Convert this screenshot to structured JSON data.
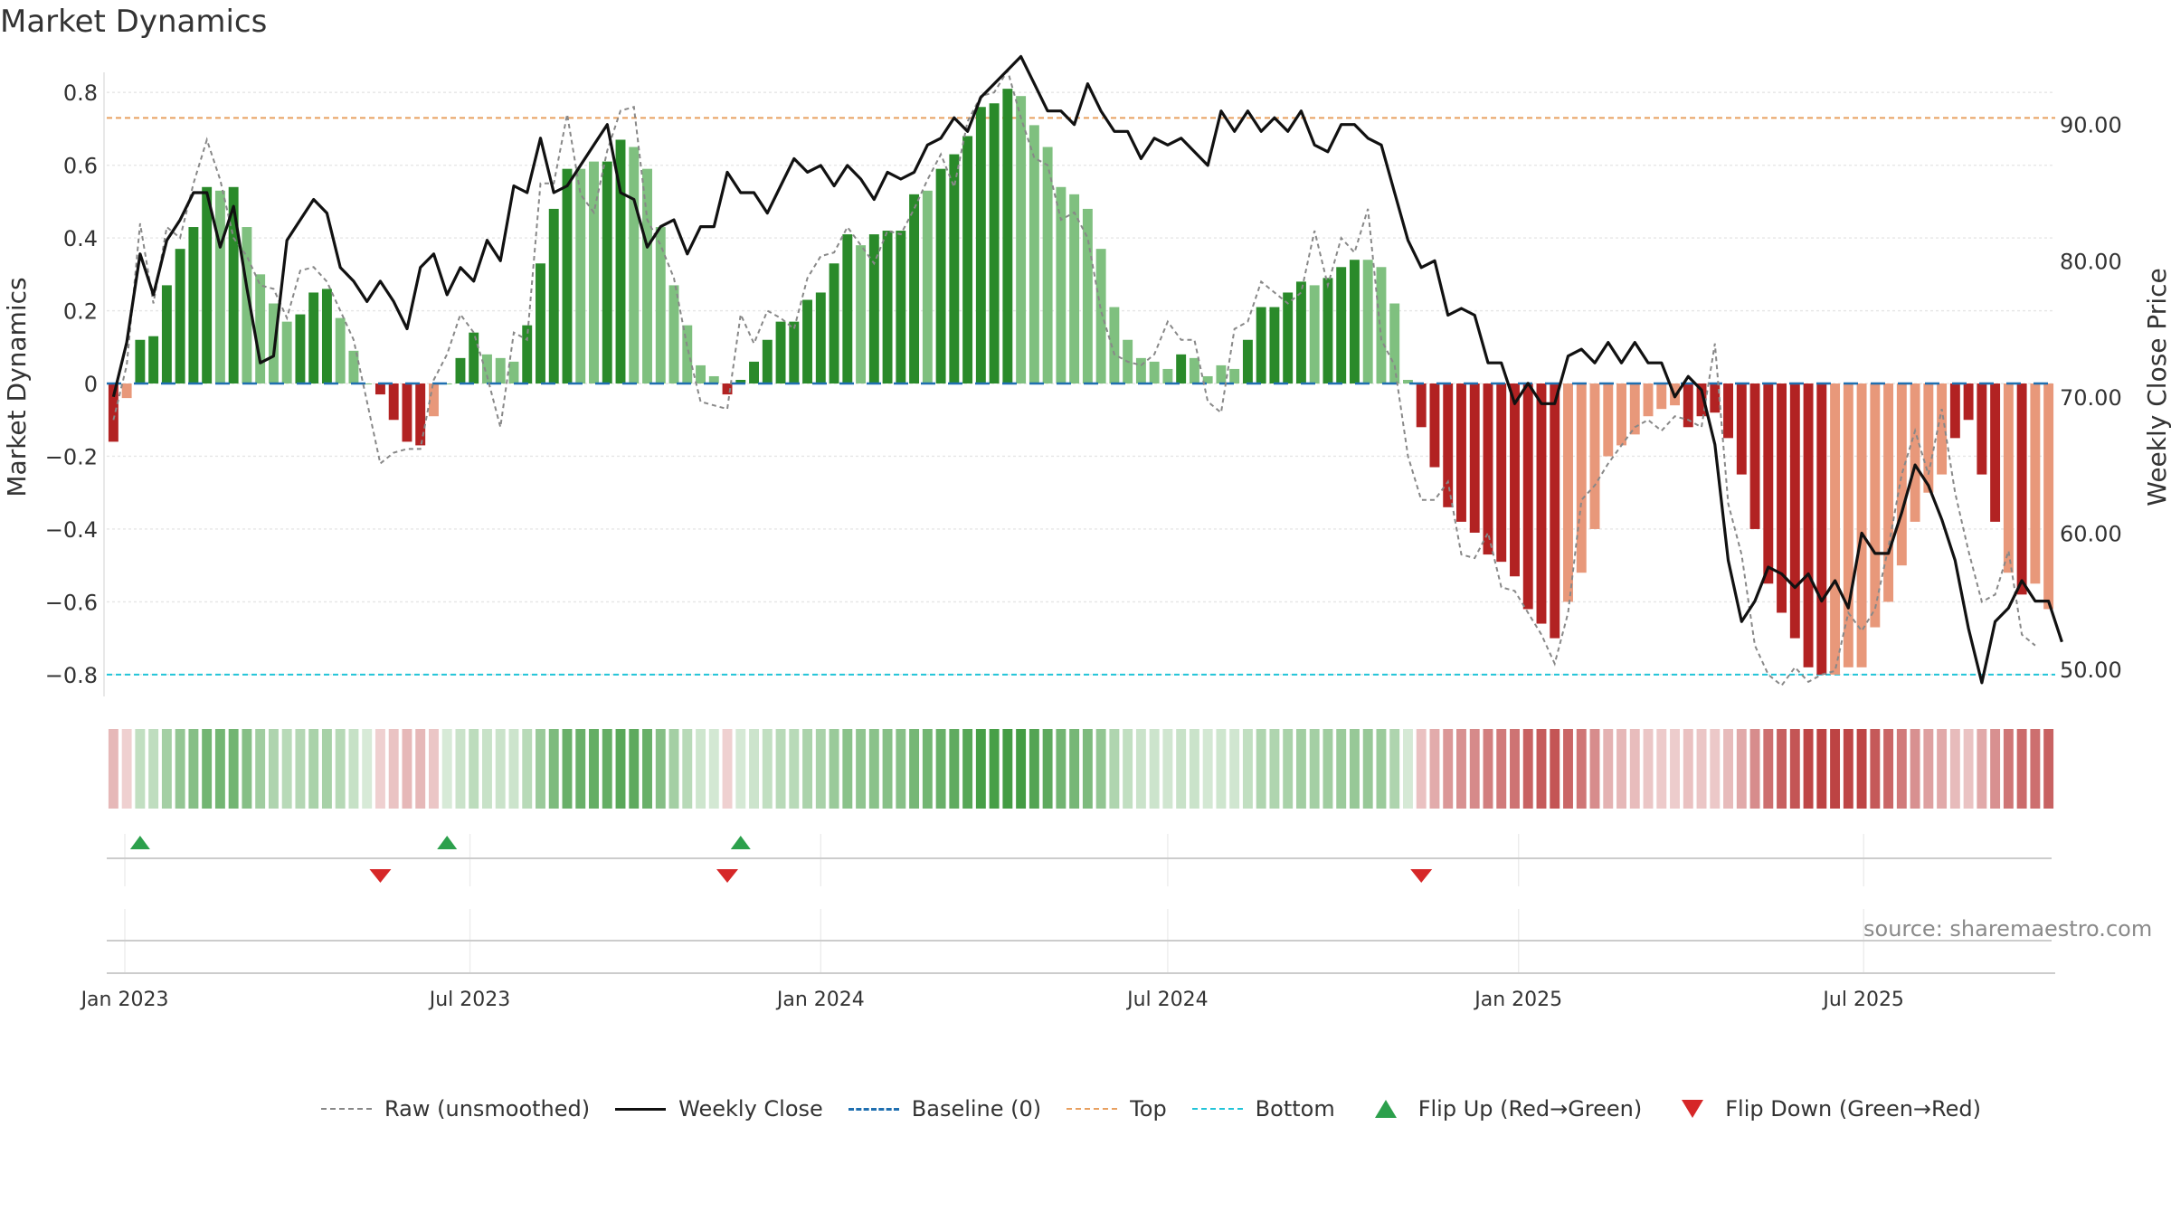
{
  "title": "Market Dynamics",
  "source": "source: sharemaestro.com",
  "legend": {
    "raw": "Raw (unsmoothed)",
    "close": "Weekly Close",
    "baseline": "Baseline (0)",
    "top": "Top",
    "bottom": "Bottom",
    "flip_up": "Flip Up (Red→Green)",
    "flip_down": "Flip Down (Green→Red)"
  },
  "colors": {
    "strong_green": "#2a8a2a",
    "light_green": "#7fc07f",
    "strong_red": "#b22222",
    "light_red": "#e8987a",
    "raw_line": "#888888",
    "close_line": "#111111",
    "baseline": "#1f6fb0",
    "top_line": "#e8a060",
    "bottom_line": "#22c4d8",
    "flip_up": "#2ca04c",
    "flip_down": "#d62728"
  },
  "chart_data": {
    "type": "bar",
    "ylabel": "Market Dynamics",
    "y2label": "Weekly Close Price",
    "ylim": [
      -0.86,
      0.88
    ],
    "y2lim": [
      48,
      94.5
    ],
    "yticks": [
      0.8,
      0.6,
      0.4,
      0.2,
      0,
      -0.2,
      -0.4,
      -0.6,
      -0.8
    ],
    "ytick_labels": [
      "0.8",
      "0.6",
      "0.4",
      "0.2",
      "0",
      "−0.2",
      "−0.4",
      "−0.6",
      "−0.8"
    ],
    "y2ticks": [
      90,
      80,
      70,
      60,
      50
    ],
    "y2tick_labels": [
      "90.00",
      "80.00",
      "70.00",
      "60.00",
      "50.00"
    ],
    "xlabels": [
      "Jan 2023",
      "Jul 2023",
      "Jan 2024",
      "Jul 2024",
      "Jan 2025",
      "Jul 2025"
    ],
    "xdates": [
      "2023-01-01",
      "2023-07-01",
      "2024-01-01",
      "2024-07-01",
      "2025-01-01",
      "2025-07-01"
    ],
    "start_date": "2022-12-26",
    "top_level": 0.73,
    "bottom_level": -0.8,
    "baseline": 0,
    "grid": true,
    "dynamics": [
      -0.16,
      -0.04,
      0.12,
      0.13,
      0.27,
      0.37,
      0.43,
      0.54,
      0.53,
      0.54,
      0.43,
      0.3,
      0.22,
      0.17,
      0.19,
      0.25,
      0.26,
      0.18,
      0.09,
      0,
      -0.03,
      -0.1,
      -0.16,
      -0.17,
      -0.09,
      0,
      0.07,
      0.14,
      0.08,
      0.07,
      0.06,
      0.16,
      0.33,
      0.48,
      0.59,
      0.59,
      0.61,
      0.61,
      0.67,
      0.65,
      0.59,
      0.43,
      0.27,
      0.16,
      0.05,
      0.02,
      -0.03,
      0.01,
      0.06,
      0.12,
      0.17,
      0.17,
      0.23,
      0.25,
      0.33,
      0.41,
      0.38,
      0.41,
      0.42,
      0.42,
      0.52,
      0.53,
      0.59,
      0.63,
      0.68,
      0.76,
      0.77,
      0.81,
      0.79,
      0.71,
      0.65,
      0.54,
      0.52,
      0.48,
      0.37,
      0.21,
      0.12,
      0.07,
      0.06,
      0.04,
      0.08,
      0.07,
      0.02,
      0.05,
      0.04,
      0.12,
      0.21,
      0.21,
      0.25,
      0.28,
      0.27,
      0.29,
      0.32,
      0.34,
      0.34,
      0.32,
      0.22,
      0.01,
      -0.12,
      -0.23,
      -0.34,
      -0.38,
      -0.41,
      -0.47,
      -0.49,
      -0.53,
      -0.62,
      -0.66,
      -0.7,
      -0.6,
      -0.52,
      -0.4,
      -0.2,
      -0.17,
      -0.14,
      -0.09,
      -0.07,
      -0.06,
      -0.12,
      -0.09,
      -0.08,
      -0.15,
      -0.25,
      -0.4,
      -0.55,
      -0.63,
      -0.7,
      -0.78,
      -0.8,
      -0.8,
      -0.78,
      -0.78,
      -0.67,
      -0.6,
      -0.5,
      -0.38,
      -0.3,
      -0.25,
      -0.15,
      -0.1,
      -0.25,
      -0.38,
      -0.52,
      -0.58,
      -0.55,
      -0.62
    ],
    "strength": [
      1,
      0,
      1,
      1,
      1,
      1,
      1,
      1,
      0,
      1,
      0,
      0,
      0,
      0,
      1,
      1,
      1,
      0,
      0,
      0,
      1,
      1,
      1,
      1,
      0,
      0,
      1,
      1,
      0,
      0,
      0,
      1,
      1,
      1,
      1,
      0,
      0,
      1,
      1,
      0,
      0,
      0,
      0,
      0,
      0,
      0,
      1,
      1,
      1,
      1,
      1,
      1,
      1,
      1,
      1,
      1,
      0,
      1,
      1,
      1,
      1,
      0,
      1,
      1,
      1,
      1,
      1,
      1,
      0,
      0,
      0,
      0,
      0,
      0,
      0,
      0,
      0,
      0,
      0,
      0,
      1,
      0,
      0,
      0,
      0,
      1,
      1,
      1,
      1,
      1,
      0,
      1,
      1,
      1,
      0,
      0,
      0,
      0,
      1,
      1,
      1,
      1,
      1,
      1,
      1,
      1,
      1,
      1,
      1,
      0,
      0,
      0,
      0,
      0,
      0,
      0,
      0,
      0,
      1,
      1,
      1,
      1,
      1,
      1,
      1,
      1,
      1,
      1,
      1,
      0,
      0,
      0,
      0,
      0,
      0,
      0,
      0,
      0,
      1,
      1,
      1,
      1,
      0,
      1
    ],
    "raw": [
      -0.1,
      0.05,
      0.44,
      0.22,
      0.43,
      0.4,
      0.55,
      0.67,
      0.56,
      0.4,
      0.35,
      0.27,
      0.26,
      0.18,
      0.31,
      0.32,
      0.28,
      0.2,
      0.12,
      -0.05,
      -0.22,
      -0.19,
      -0.18,
      -0.18,
      0.01,
      0.08,
      0.19,
      0.14,
      0.02,
      -0.12,
      0.14,
      0.12,
      0.55,
      0.55,
      0.74,
      0.52,
      0.47,
      0.64,
      0.75,
      0.76,
      0.45,
      0.38,
      0.29,
      0.1,
      -0.05,
      -0.06,
      -0.07,
      0.19,
      0.11,
      0.2,
      0.18,
      0.15,
      0.29,
      0.35,
      0.36,
      0.43,
      0.38,
      0.33,
      0.42,
      0.41,
      0.48,
      0.56,
      0.63,
      0.54,
      0.72,
      0.79,
      0.8,
      0.86,
      0.73,
      0.62,
      0.6,
      0.45,
      0.47,
      0.4,
      0.2,
      0.08,
      0.06,
      0.05,
      0.08,
      0.17,
      0.12,
      0.12,
      -0.05,
      -0.08,
      0.15,
      0.17,
      0.28,
      0.25,
      0.22,
      0.25,
      0.42,
      0.27,
      0.4,
      0.36,
      0.48,
      0.12,
      0.05,
      -0.2,
      -0.32,
      -0.32,
      -0.27,
      -0.47,
      -0.48,
      -0.41,
      -0.56,
      -0.57,
      -0.63,
      -0.69,
      -0.77,
      -0.63,
      -0.32,
      -0.28,
      -0.22,
      -0.17,
      -0.12,
      -0.1,
      -0.13,
      -0.09,
      -0.1,
      -0.12,
      0.11,
      -0.33,
      -0.47,
      -0.72,
      -0.8,
      -0.83,
      -0.78,
      -0.82,
      -0.8,
      -0.79,
      -0.63,
      -0.68,
      -0.62,
      -0.45,
      -0.25,
      -0.13,
      -0.25,
      -0.07,
      -0.3,
      -0.46,
      -0.6,
      -0.58,
      -0.46,
      -0.69,
      -0.72
    ],
    "close": [
      70,
      74,
      80.5,
      77.5,
      81.5,
      83,
      85,
      85,
      81,
      84,
      78,
      72.5,
      73,
      81.5,
      83,
      84.5,
      83.5,
      79.5,
      78.5,
      77,
      78.5,
      77,
      75,
      79.5,
      80.5,
      77.5,
      79.5,
      78.5,
      81.5,
      80,
      85.5,
      85,
      89,
      85,
      85.5,
      87,
      88.5,
      90,
      85,
      84.5,
      81,
      82.5,
      83,
      80.5,
      82.5,
      82.5,
      86.5,
      85,
      85,
      83.5,
      85.5,
      87.5,
      86.5,
      87,
      85.5,
      87,
      86,
      84.5,
      86.5,
      86,
      86.5,
      88.5,
      89,
      90.5,
      89.5,
      92,
      93,
      94,
      95,
      93,
      91,
      91,
      90,
      93,
      91,
      89.5,
      89.5,
      87.5,
      89,
      88.5,
      89,
      88,
      87,
      91,
      89.5,
      91,
      89.5,
      90.5,
      89.5,
      91,
      88.5,
      88,
      90,
      90,
      89,
      88.5,
      85,
      81.5,
      79.5,
      80,
      76,
      76.5,
      76,
      72.5,
      72.5,
      69.5,
      71,
      69.5,
      69.5,
      73,
      73.5,
      72.5,
      74,
      72.5,
      74,
      72.5,
      72.5,
      70,
      71.5,
      70.5,
      66.5,
      58,
      53.5,
      55,
      57.5,
      57,
      56,
      57,
      55,
      56.5,
      54.5,
      60,
      58.5,
      58.5,
      61.5,
      65,
      63.5,
      61,
      58,
      53,
      49,
      53.5,
      54.5,
      56.5,
      55,
      55,
      52
    ]
  },
  "flips": {
    "up_weeks": [
      2,
      25,
      47
    ],
    "down_weeks": [
      20,
      46,
      98
    ]
  }
}
